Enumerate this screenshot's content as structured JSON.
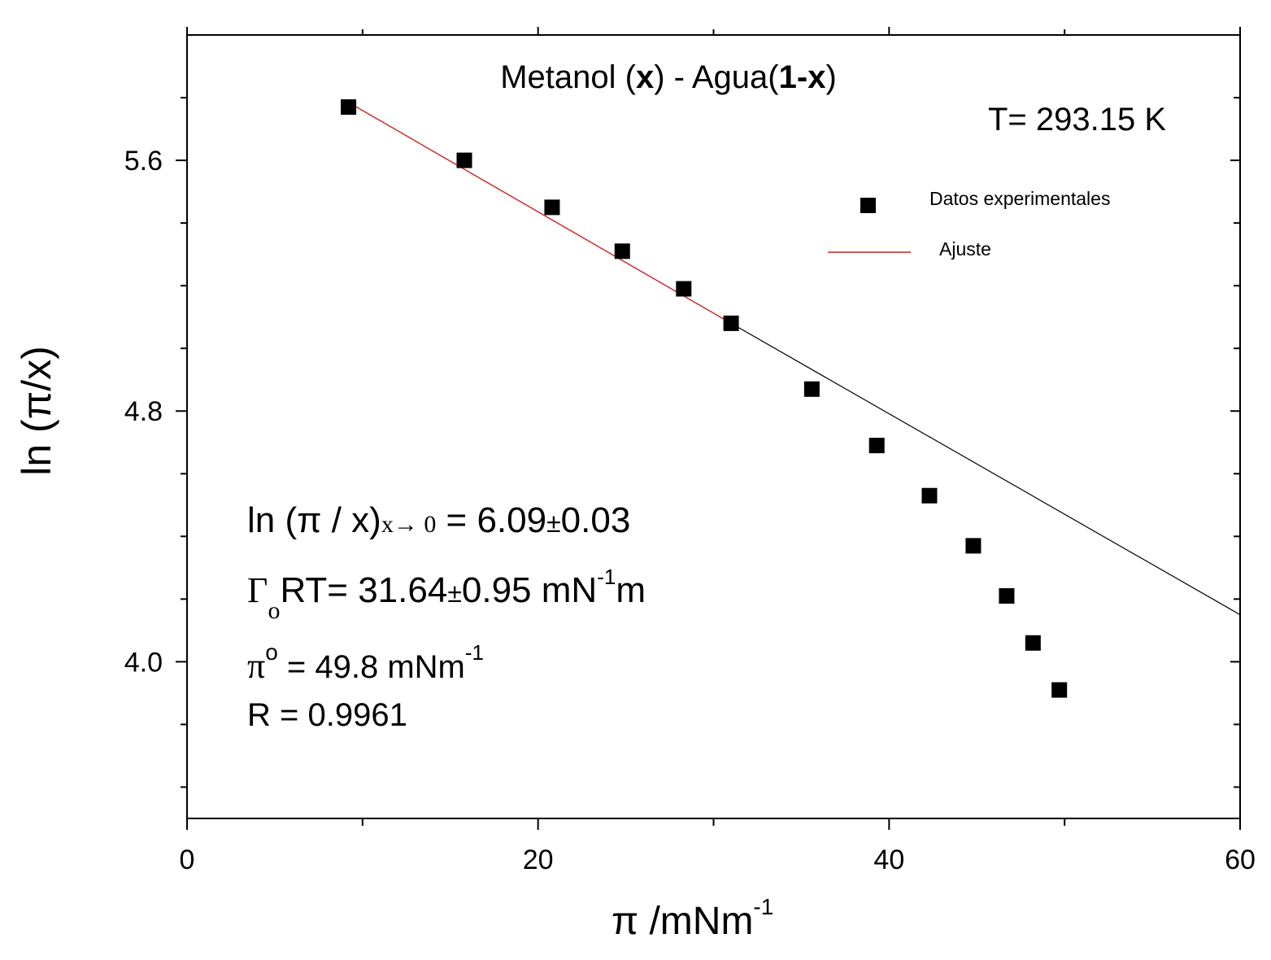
{
  "chart_data": {
    "type": "scatter",
    "title": {
      "prefix": "Metanol (",
      "bold1": "x",
      "middle": ") - Agua(",
      "bold2": "1-x",
      "suffix": ")"
    },
    "temperature_label": "T= 293.15 K",
    "xlabel": {
      "base": "π /mNm",
      "sup": "-1"
    },
    "ylabel": "ln (π/x)",
    "xlim": [
      0,
      60
    ],
    "ylim": [
      3.5,
      6.0
    ],
    "x_ticks": [
      0,
      20,
      40,
      60
    ],
    "x_tick_labels": [
      "0",
      "20",
      "40",
      "60"
    ],
    "x_minor_ticks": [
      10,
      30,
      50
    ],
    "y_ticks": [
      4.0,
      4.8,
      5.6
    ],
    "y_tick_labels": [
      "4.0",
      "4.8",
      "5.6"
    ],
    "y_minor_ticks": [
      3.6,
      3.8,
      4.2,
      4.4,
      4.6,
      5.0,
      5.2,
      5.4,
      5.8
    ],
    "series": [
      {
        "name": "Datos experimentales",
        "style": "square-marker",
        "color": "#000000",
        "x": [
          9.2,
          15.8,
          20.8,
          24.8,
          28.3,
          31.0,
          35.6,
          39.3,
          42.3,
          44.8,
          46.7,
          48.2,
          49.7
        ],
        "y": [
          5.77,
          5.6,
          5.45,
          5.31,
          5.19,
          5.08,
          4.87,
          4.69,
          4.53,
          4.37,
          4.21,
          4.06,
          3.91
        ]
      },
      {
        "name": "Ajuste",
        "style": "line",
        "color": "#cc2222",
        "x_range": [
          9.2,
          31.0
        ],
        "y_range": [
          5.785,
          5.08
        ]
      }
    ],
    "extrapolation_line": {
      "color": "#000000",
      "x_range": [
        31.0,
        60.0
      ],
      "y_range": [
        5.08,
        4.15
      ]
    },
    "annotations": {
      "line1": {
        "text": "ln (π / x)",
        "sub": "x→ 0",
        "rest": " = 6.09",
        "pm": "±",
        "err": "0.03"
      },
      "line2": {
        "gamma": "Γ",
        "sub": "o",
        "text": "RT= 31.64",
        "pm": "±",
        "err": "0.95 mN",
        "sup": "-1",
        "unit": "m"
      },
      "line3": {
        "pi": "π",
        "sup": "o",
        "text": " = 49.8 mNm",
        "sup2": "-1"
      },
      "line4": {
        "text": "R = 0.9961"
      }
    }
  }
}
